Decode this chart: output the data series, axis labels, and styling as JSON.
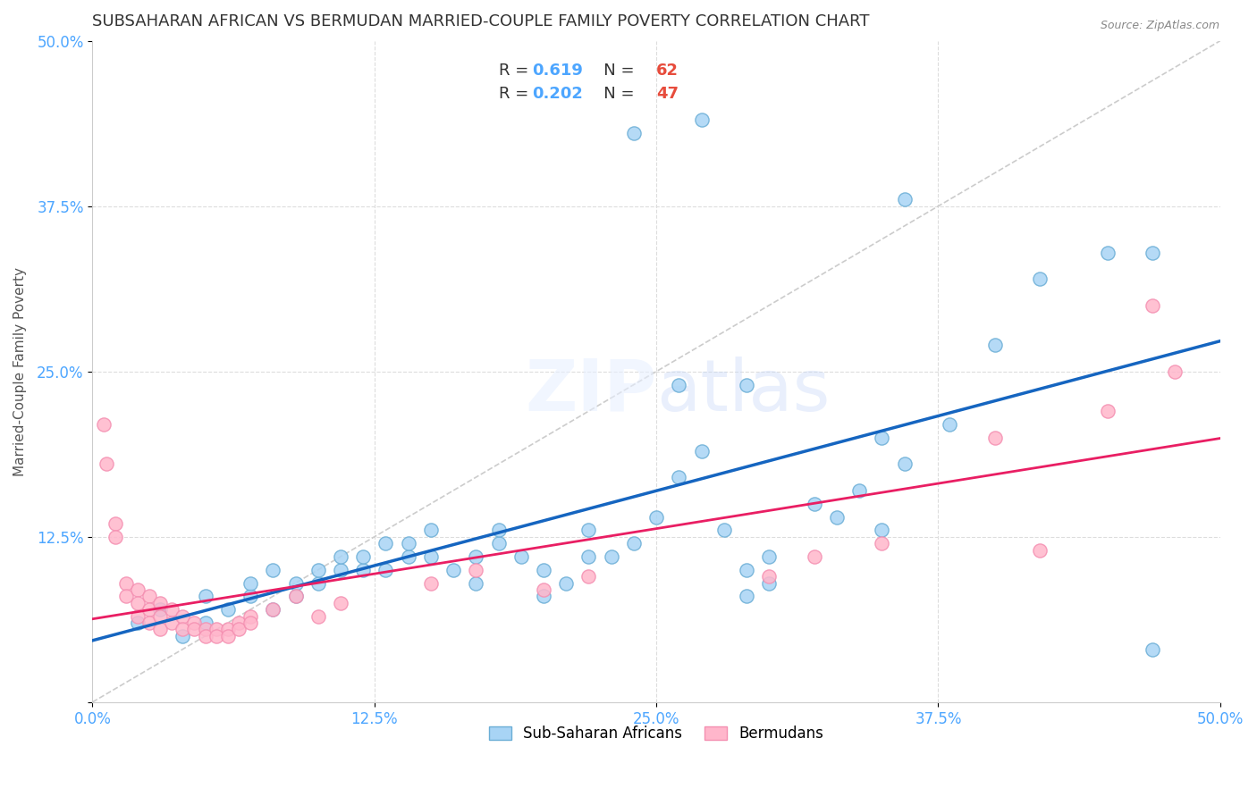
{
  "title": "SUBSAHARAN AFRICAN VS BERMUDAN MARRIED-COUPLE FAMILY POVERTY CORRELATION CHART",
  "source": "Source: ZipAtlas.com",
  "xlabel_color": "#4da6ff",
  "ylabel": "Married-Couple Family Poverty",
  "xlim": [
    0.0,
    0.5
  ],
  "ylim": [
    0.0,
    0.5
  ],
  "xtick_labels": [
    "0.0%",
    "12.5%",
    "25.0%",
    "37.5%",
    "50.0%"
  ],
  "xtick_vals": [
    0.0,
    0.125,
    0.25,
    0.375,
    0.5
  ],
  "ytick_labels": [
    "",
    "12.5%",
    "25.0%",
    "37.5%",
    "50.0%"
  ],
  "ytick_vals": [
    0.0,
    0.125,
    0.25,
    0.375,
    0.5
  ],
  "blue_color": "#6baed6",
  "blue_face": "#a8d0f0",
  "pink_color": "#f48fb1",
  "pink_face": "#ffb6c1",
  "legend_R1": "R = ",
  "legend_V1": "0.619",
  "legend_N1": "N = ",
  "legend_NV1": "62",
  "legend_R2": "R = ",
  "legend_V2": "0.202",
  "legend_N2": "N = ",
  "legend_NV2": "47",
  "trendline_blue_color": "#1565c0",
  "trendline_pink_color": "#e91e63",
  "diagonal_color": "#cccccc",
  "watermark": "ZIPatlas",
  "blue_scatter": [
    [
      0.02,
      0.06
    ],
    [
      0.03,
      0.07
    ],
    [
      0.04,
      0.05
    ],
    [
      0.05,
      0.06
    ],
    [
      0.05,
      0.08
    ],
    [
      0.06,
      0.07
    ],
    [
      0.07,
      0.08
    ],
    [
      0.07,
      0.09
    ],
    [
      0.08,
      0.07
    ],
    [
      0.08,
      0.1
    ],
    [
      0.09,
      0.08
    ],
    [
      0.09,
      0.09
    ],
    [
      0.1,
      0.09
    ],
    [
      0.1,
      0.1
    ],
    [
      0.11,
      0.1
    ],
    [
      0.11,
      0.11
    ],
    [
      0.12,
      0.1
    ],
    [
      0.12,
      0.11
    ],
    [
      0.13,
      0.1
    ],
    [
      0.13,
      0.12
    ],
    [
      0.14,
      0.11
    ],
    [
      0.14,
      0.12
    ],
    [
      0.15,
      0.11
    ],
    [
      0.15,
      0.13
    ],
    [
      0.16,
      0.1
    ],
    [
      0.17,
      0.09
    ],
    [
      0.17,
      0.11
    ],
    [
      0.18,
      0.12
    ],
    [
      0.18,
      0.13
    ],
    [
      0.19,
      0.11
    ],
    [
      0.2,
      0.08
    ],
    [
      0.2,
      0.1
    ],
    [
      0.21,
      0.09
    ],
    [
      0.22,
      0.11
    ],
    [
      0.22,
      0.13
    ],
    [
      0.23,
      0.11
    ],
    [
      0.24,
      0.12
    ],
    [
      0.25,
      0.14
    ],
    [
      0.26,
      0.17
    ],
    [
      0.27,
      0.19
    ],
    [
      0.28,
      0.13
    ],
    [
      0.29,
      0.08
    ],
    [
      0.29,
      0.1
    ],
    [
      0.3,
      0.09
    ],
    [
      0.3,
      0.11
    ],
    [
      0.32,
      0.15
    ],
    [
      0.33,
      0.14
    ],
    [
      0.34,
      0.16
    ],
    [
      0.35,
      0.13
    ],
    [
      0.36,
      0.18
    ],
    [
      0.26,
      0.24
    ],
    [
      0.29,
      0.24
    ],
    [
      0.35,
      0.2
    ],
    [
      0.38,
      0.21
    ],
    [
      0.4,
      0.27
    ],
    [
      0.42,
      0.32
    ],
    [
      0.45,
      0.34
    ],
    [
      0.47,
      0.34
    ],
    [
      0.47,
      0.04
    ],
    [
      0.24,
      0.43
    ],
    [
      0.27,
      0.44
    ],
    [
      0.36,
      0.38
    ]
  ],
  "pink_scatter": [
    [
      0.005,
      0.21
    ],
    [
      0.006,
      0.18
    ],
    [
      0.01,
      0.135
    ],
    [
      0.01,
      0.125
    ],
    [
      0.015,
      0.09
    ],
    [
      0.015,
      0.08
    ],
    [
      0.02,
      0.085
    ],
    [
      0.02,
      0.075
    ],
    [
      0.02,
      0.065
    ],
    [
      0.025,
      0.08
    ],
    [
      0.025,
      0.07
    ],
    [
      0.025,
      0.06
    ],
    [
      0.03,
      0.075
    ],
    [
      0.03,
      0.065
    ],
    [
      0.03,
      0.055
    ],
    [
      0.035,
      0.07
    ],
    [
      0.035,
      0.06
    ],
    [
      0.04,
      0.065
    ],
    [
      0.04,
      0.055
    ],
    [
      0.045,
      0.06
    ],
    [
      0.045,
      0.055
    ],
    [
      0.05,
      0.055
    ],
    [
      0.05,
      0.05
    ],
    [
      0.055,
      0.055
    ],
    [
      0.055,
      0.05
    ],
    [
      0.06,
      0.055
    ],
    [
      0.06,
      0.05
    ],
    [
      0.065,
      0.06
    ],
    [
      0.065,
      0.055
    ],
    [
      0.07,
      0.065
    ],
    [
      0.07,
      0.06
    ],
    [
      0.08,
      0.07
    ],
    [
      0.09,
      0.08
    ],
    [
      0.1,
      0.065
    ],
    [
      0.11,
      0.075
    ],
    [
      0.15,
      0.09
    ],
    [
      0.17,
      0.1
    ],
    [
      0.2,
      0.085
    ],
    [
      0.22,
      0.095
    ],
    [
      0.3,
      0.095
    ],
    [
      0.32,
      0.11
    ],
    [
      0.35,
      0.12
    ],
    [
      0.4,
      0.2
    ],
    [
      0.42,
      0.115
    ],
    [
      0.45,
      0.22
    ],
    [
      0.47,
      0.3
    ],
    [
      0.48,
      0.25
    ]
  ]
}
